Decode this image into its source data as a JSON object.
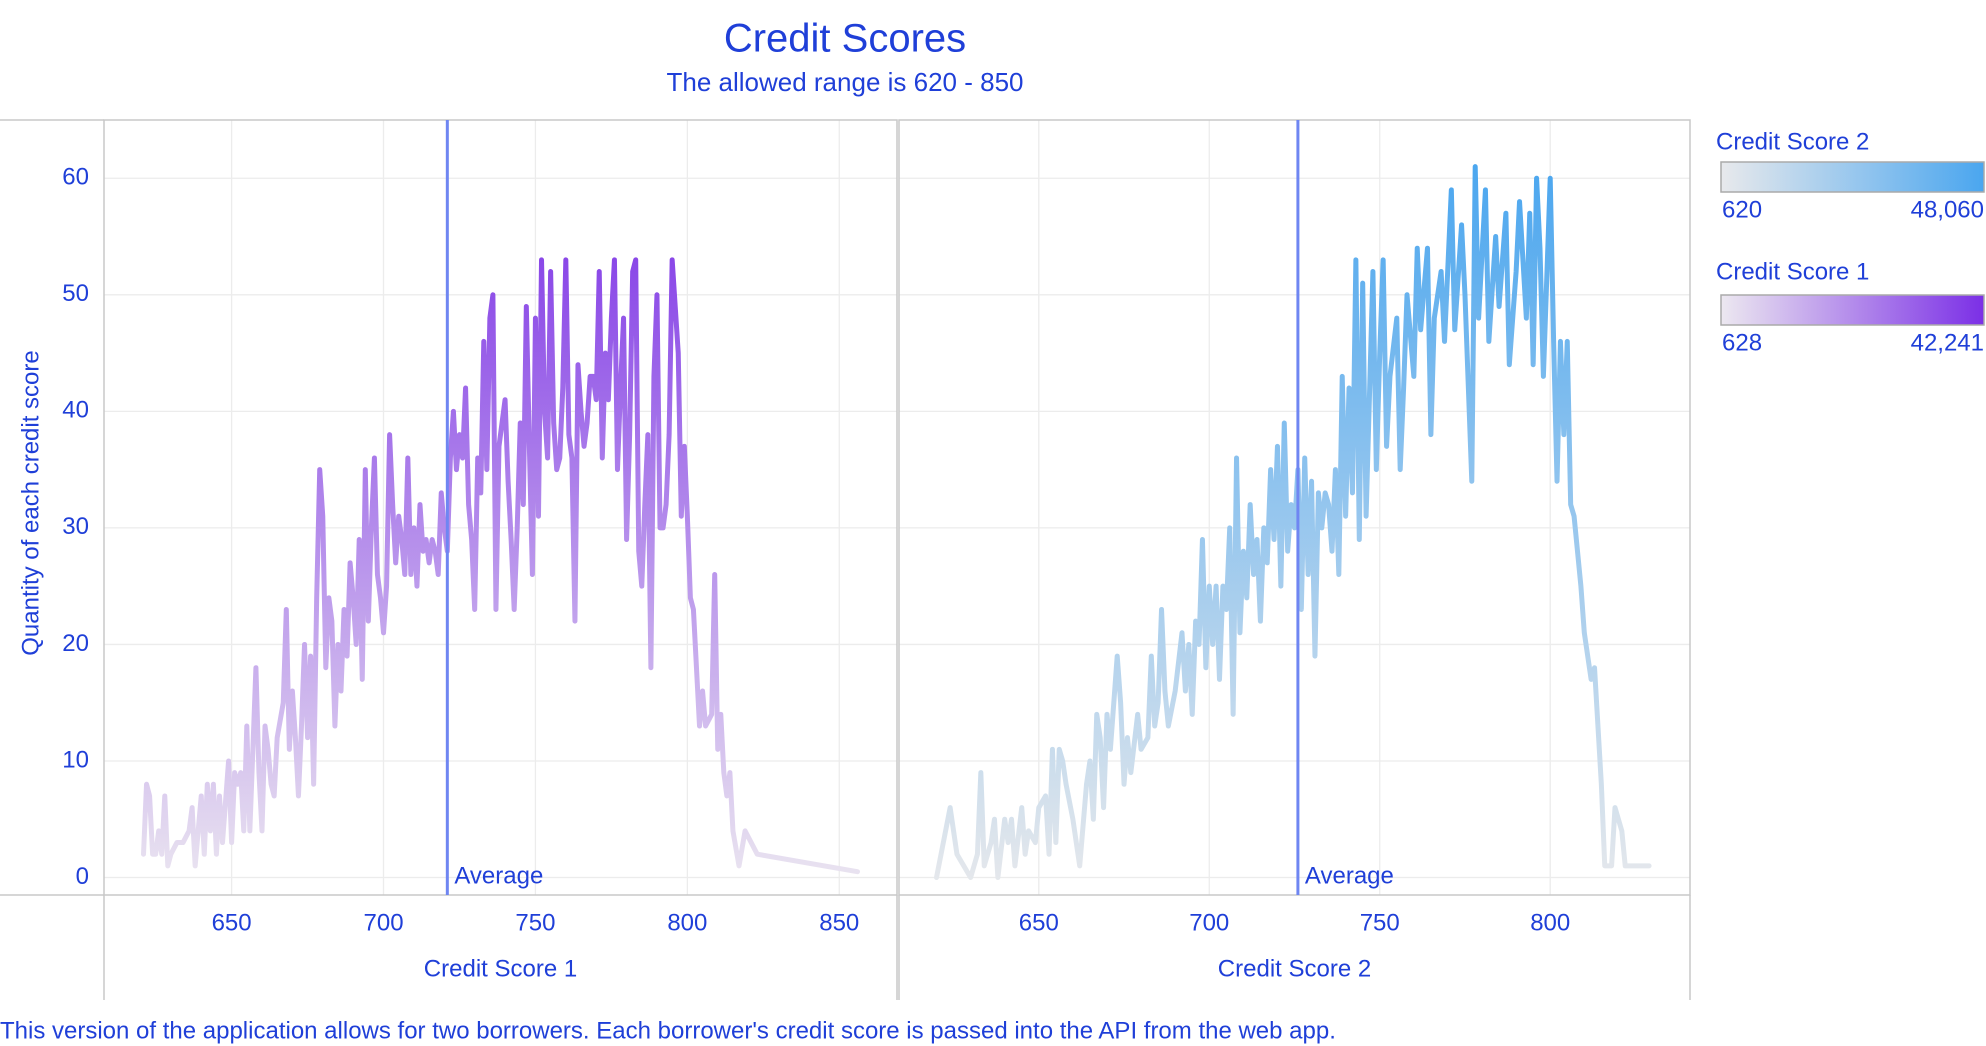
{
  "title": "Credit Scores",
  "subtitle": "The allowed range is 620 - 850",
  "y_label": "Quantity of each credit score",
  "footnote": "This version of the application allows for two borrowers. Each borrower's credit score is passed into the API from the web app.",
  "chart_data": [
    {
      "type": "line",
      "x_label": "Credit Score 1",
      "x": [
        621,
        622,
        623,
        624,
        625,
        626,
        627,
        628,
        629,
        630,
        632,
        634,
        636,
        637,
        638,
        640,
        641,
        642,
        643,
        644,
        645,
        646,
        647,
        649,
        650,
        651,
        652,
        653,
        654,
        655,
        656,
        657,
        658,
        659,
        660,
        661,
        662,
        663,
        664,
        665,
        667,
        668,
        669,
        670,
        671,
        672,
        673,
        674,
        675,
        676,
        677,
        678,
        679,
        680,
        681,
        682,
        683,
        684,
        685,
        686,
        687,
        688,
        689,
        690,
        691,
        692,
        693,
        694,
        695,
        696,
        697,
        698,
        699,
        700,
        701,
        702,
        703,
        704,
        705,
        706,
        707,
        708,
        709,
        710,
        711,
        712,
        713,
        714,
        715,
        716,
        717,
        718,
        719,
        720,
        721,
        722,
        723,
        724,
        725,
        726,
        727,
        728,
        729,
        730,
        731,
        732,
        733,
        734,
        735,
        736,
        737,
        738,
        739,
        740,
        741,
        742,
        743,
        744,
        745,
        746,
        747,
        748,
        749,
        750,
        751,
        752,
        753,
        754,
        755,
        756,
        757,
        758,
        759,
        760,
        761,
        762,
        763,
        764,
        765,
        766,
        767,
        768,
        769,
        770,
        771,
        772,
        773,
        774,
        775,
        776,
        777,
        778,
        779,
        780,
        781,
        782,
        783,
        784,
        785,
        786,
        787,
        788,
        789,
        790,
        791,
        792,
        793,
        794,
        795,
        797,
        798,
        799,
        800,
        801,
        802,
        804,
        805,
        806,
        808,
        809,
        810,
        811,
        812,
        813,
        814,
        815,
        817,
        819,
        823,
        856
      ],
      "values": [
        2,
        8,
        7,
        2,
        2,
        4,
        2,
        7,
        1,
        2,
        3,
        3,
        4,
        6,
        1,
        7,
        2,
        8,
        4,
        8,
        2,
        7,
        3,
        10,
        3,
        9,
        8,
        9,
        4,
        13,
        4,
        11,
        18,
        9,
        4,
        13,
        11,
        8,
        7,
        12,
        15,
        23,
        11,
        16,
        12,
        7,
        13,
        20,
        12,
        19,
        8,
        24,
        35,
        31,
        18,
        24,
        22,
        13,
        20,
        16,
        23,
        19,
        27,
        24,
        20,
        29,
        17,
        35,
        22,
        30,
        36,
        26,
        24,
        21,
        25,
        38,
        32,
        27,
        31,
        29,
        26,
        36,
        26,
        30,
        25,
        32,
        28,
        29,
        27,
        29,
        28,
        26,
        33,
        30,
        28,
        36,
        40,
        35,
        38,
        36,
        42,
        32,
        29,
        23,
        36,
        33,
        46,
        35,
        48,
        50,
        23,
        37,
        39,
        41,
        34,
        29,
        23,
        30,
        39,
        32,
        49,
        37,
        26,
        48,
        31,
        53,
        40,
        36,
        52,
        39,
        35,
        36,
        42,
        53,
        38,
        36,
        22,
        44,
        40,
        37,
        39,
        43,
        43,
        41,
        52,
        36,
        45,
        41,
        48,
        53,
        35,
        42,
        48,
        29,
        38,
        52,
        53,
        28,
        25,
        32,
        38,
        18,
        43,
        50,
        30,
        30,
        32,
        38,
        53,
        45,
        31,
        37,
        31,
        24,
        23,
        13,
        16,
        13,
        14,
        26,
        11,
        14,
        9,
        7,
        9,
        4,
        1,
        4,
        2,
        0.5
      ],
      "xlim": [
        608,
        869
      ],
      "xticks": [
        650,
        700,
        750,
        800,
        850
      ],
      "ylim": [
        -1.5,
        65
      ],
      "yticks": [
        0,
        10,
        20,
        30,
        40,
        50,
        60
      ],
      "grid": true,
      "average": 721,
      "average_label": "Average",
      "legend": {
        "title": "Credit Score 1",
        "min": 628,
        "max": {
          "value": 42241,
          "label": "42,241"
        },
        "colors": [
          "#ece8f0",
          "#7b2fe6"
        ]
      }
    },
    {
      "type": "line",
      "x_label": "Credit Score 2",
      "x": [
        620,
        622,
        624,
        626,
        628,
        630,
        632,
        633,
        634,
        636,
        637,
        638,
        640,
        641,
        642,
        643,
        645,
        646,
        647,
        649,
        650,
        652,
        653,
        654,
        655,
        656,
        657,
        658,
        660,
        662,
        664,
        665,
        666,
        667,
        668,
        669,
        670,
        671,
        673,
        674,
        675,
        676,
        677,
        679,
        680,
        682,
        683,
        684,
        685,
        686,
        687,
        688,
        690,
        692,
        693,
        694,
        695,
        696,
        697,
        698,
        699,
        700,
        701,
        702,
        703,
        704,
        705,
        706,
        707,
        708,
        709,
        710,
        711,
        712,
        713,
        714,
        715,
        716,
        717,
        718,
        719,
        720,
        721,
        722,
        723,
        724,
        725,
        726,
        727,
        728,
        729,
        730,
        731,
        732,
        733,
        734,
        735,
        736,
        737,
        738,
        739,
        740,
        741,
        742,
        743,
        744,
        745,
        746,
        748,
        749,
        750,
        751,
        752,
        753,
        755,
        756,
        757,
        758,
        760,
        761,
        762,
        764,
        765,
        766,
        768,
        769,
        771,
        772,
        774,
        775,
        777,
        778,
        779,
        781,
        782,
        784,
        785,
        787,
        788,
        790,
        791,
        793,
        794,
        795,
        796,
        797,
        798,
        800,
        801,
        802,
        803,
        804,
        805,
        806,
        807,
        809,
        810,
        812,
        813,
        815,
        816,
        818,
        819,
        821,
        822,
        829
      ],
      "values": [
        0,
        3,
        6,
        2,
        1,
        0,
        2,
        9,
        1,
        3,
        5,
        0,
        5,
        3,
        5,
        1,
        6,
        2,
        4,
        3,
        6,
        7,
        2,
        11,
        3,
        11,
        10,
        8,
        5,
        1,
        8,
        10,
        5,
        14,
        12,
        6,
        14,
        11,
        19,
        15,
        8,
        12,
        9,
        14,
        11,
        12,
        19,
        13,
        15,
        23,
        16,
        13,
        16,
        21,
        16,
        20,
        14,
        22,
        20,
        29,
        18,
        25,
        20,
        25,
        17,
        25,
        23,
        30,
        14,
        36,
        21,
        28,
        24,
        32,
        26,
        29,
        22,
        30,
        27,
        35,
        29,
        37,
        25,
        39,
        28,
        32,
        30,
        35,
        23,
        36,
        26,
        34,
        19,
        33,
        30,
        33,
        32,
        28,
        35,
        26,
        43,
        31,
        42,
        33,
        53,
        29,
        51,
        31,
        52,
        35,
        45,
        53,
        37,
        43,
        48,
        35,
        42,
        50,
        43,
        54,
        47,
        54,
        38,
        48,
        52,
        46,
        59,
        47,
        56,
        50,
        34,
        61,
        48,
        59,
        46,
        55,
        49,
        57,
        44,
        52,
        58,
        48,
        57,
        44,
        60,
        54,
        43,
        60,
        46,
        34,
        46,
        38,
        46,
        32,
        31,
        25,
        21,
        17,
        18,
        8,
        1,
        1,
        6,
        4,
        1,
        1
      ],
      "xlim": [
        609,
        841
      ],
      "xticks": [
        650,
        700,
        750,
        800
      ],
      "ylim": [
        -1.5,
        65
      ],
      "yticks": [
        0,
        10,
        20,
        30,
        40,
        50,
        60
      ],
      "grid": true,
      "average": 726,
      "average_label": "Average",
      "legend": {
        "title": "Credit Score 2",
        "min": 620,
        "max": {
          "value": 48060,
          "label": "48,060"
        },
        "colors": [
          "#e8e9ec",
          "#4aa6ef"
        ]
      }
    }
  ]
}
